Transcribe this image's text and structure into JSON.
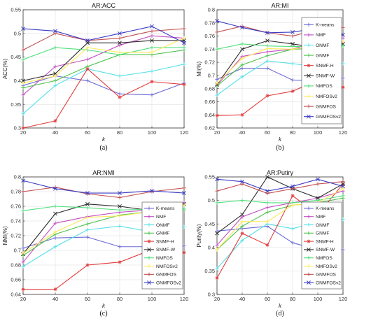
{
  "legend_labels": [
    "K-means",
    "NMF",
    "ONMF",
    "GNMF",
    "SNMF-H",
    "SNMF-W",
    "NMFOS",
    "NMFOSv2",
    "GNMFOS",
    "GNMFOSv2"
  ],
  "series_colors": [
    "#6b6bd6",
    "#c44fc4",
    "#53e0e8",
    "#4fc24f",
    "#e23c3c",
    "#2b2b2b",
    "#4fe07a",
    "#ffe95a",
    "#c25050",
    "#3b3bc4"
  ],
  "series_markers": [
    "plus",
    "plus",
    "plus",
    "plus",
    "star",
    "x",
    "plus",
    "plus",
    "plus",
    "x"
  ],
  "chart_data": [
    {
      "type": "line",
      "title": "AR:ACC",
      "xlabel": "k",
      "ylabel": "ACC(%)",
      "panel_label": "(a)",
      "x": [
        20,
        40,
        60,
        80,
        100,
        120
      ],
      "xticks": [
        "20",
        "40",
        "60",
        "80",
        "100",
        "120"
      ],
      "ylim": [
        0.3,
        0.55
      ],
      "yticks": [
        "0.3",
        "0.35",
        "0.4",
        "0.45",
        "0.5",
        "0.55"
      ],
      "grid": true,
      "legend": "none",
      "series": [
        {
          "name": "K-means",
          "values": [
            0.39,
            0.41,
            0.4,
            0.372,
            0.37,
            0.395
          ]
        },
        {
          "name": "NMF",
          "values": [
            0.37,
            0.43,
            0.445,
            0.475,
            0.495,
            0.49
          ]
        },
        {
          "name": "ONMF",
          "values": [
            0.33,
            0.39,
            0.425,
            0.41,
            0.42,
            0.435
          ]
        },
        {
          "name": "GNMF",
          "values": [
            0.385,
            0.4,
            0.43,
            0.455,
            0.455,
            0.465
          ]
        },
        {
          "name": "SNMF-H",
          "values": [
            0.3,
            0.315,
            0.425,
            0.365,
            0.398,
            0.392
          ]
        },
        {
          "name": "SNMF-W",
          "values": [
            0.4,
            0.415,
            0.48,
            0.48,
            0.485,
            0.485
          ]
        },
        {
          "name": "NMFOS",
          "values": [
            0.445,
            0.47,
            0.465,
            0.455,
            0.47,
            0.47
          ]
        },
        {
          "name": "NMFOSv2",
          "values": [
            0.395,
            0.41,
            0.47,
            0.46,
            0.46,
            0.49
          ]
        },
        {
          "name": "GNMFOS",
          "values": [
            0.465,
            0.5,
            0.485,
            0.49,
            0.505,
            0.51
          ]
        },
        {
          "name": "GNMFOSv2",
          "values": [
            0.51,
            0.505,
            0.485,
            0.5,
            0.515,
            0.48
          ]
        }
      ]
    },
    {
      "type": "line",
      "title": "AR:MI",
      "xlabel": "k",
      "ylabel": "MI(%)",
      "panel_label": "(b)",
      "x": [
        20,
        40,
        60,
        80,
        100,
        120
      ],
      "xticks": [
        "20",
        "40",
        "60",
        "80",
        "100",
        "120"
      ],
      "ylim": [
        0.62,
        0.8
      ],
      "yticks": [
        "0.62",
        "0.64",
        "0.66",
        "0.68",
        "0.7",
        "0.72",
        "0.74",
        "0.76",
        "0.78",
        "0.8"
      ],
      "grid": true,
      "legend": "right",
      "series": [
        {
          "name": "K-means",
          "values": [
            0.694,
            0.711,
            0.711,
            0.693,
            0.692,
            0.696
          ]
        },
        {
          "name": "NMF",
          "values": [
            0.685,
            0.729,
            0.736,
            0.74,
            0.752,
            0.757
          ]
        },
        {
          "name": "ONMF",
          "values": [
            0.67,
            0.698,
            0.722,
            0.718,
            0.713,
            0.718
          ]
        },
        {
          "name": "GNMF",
          "values": [
            0.684,
            0.716,
            0.73,
            0.74,
            0.741,
            0.745
          ]
        },
        {
          "name": "SNMF-H",
          "values": [
            0.639,
            0.64,
            0.669,
            0.676,
            0.693,
            0.682
          ]
        },
        {
          "name": "SNMF-W",
          "values": [
            0.686,
            0.74,
            0.753,
            0.748,
            0.742,
            0.748
          ]
        },
        {
          "name": "NMFOS",
          "values": [
            0.74,
            0.748,
            0.745,
            0.744,
            0.744,
            0.745
          ]
        },
        {
          "name": "NMFOSv2",
          "values": [
            0.688,
            0.726,
            0.741,
            0.74,
            0.746,
            0.752
          ]
        },
        {
          "name": "GNMFOS",
          "values": [
            0.766,
            0.775,
            0.765,
            0.76,
            0.77,
            0.773
          ]
        },
        {
          "name": "GNMFOSv2",
          "values": [
            0.783,
            0.773,
            0.765,
            0.766,
            0.772,
            0.762
          ]
        }
      ]
    },
    {
      "type": "line",
      "title": "AR:NMI",
      "xlabel": "k",
      "ylabel": "NMI(%)",
      "panel_label": "(c)",
      "x": [
        20,
        40,
        60,
        80,
        100,
        120
      ],
      "xticks": [
        "20",
        "40",
        "60",
        "80",
        "100",
        "120"
      ],
      "ylim": [
        0.64,
        0.8
      ],
      "yticks": [
        "0.64",
        "0.66",
        "0.68",
        "0.7",
        "0.72",
        "0.74",
        "0.76",
        "0.78",
        "0.8"
      ],
      "grid": true,
      "legend": "right",
      "series": [
        {
          "name": "K-means",
          "values": [
            0.703,
            0.717,
            0.718,
            0.705,
            0.705,
            0.706
          ]
        },
        {
          "name": "NMF",
          "values": [
            0.684,
            0.737,
            0.746,
            0.752,
            0.755,
            0.765
          ]
        },
        {
          "name": "ONMF",
          "values": [
            0.678,
            0.705,
            0.728,
            0.733,
            0.725,
            0.732
          ]
        },
        {
          "name": "GNMF",
          "values": [
            0.693,
            0.722,
            0.736,
            0.748,
            0.753,
            0.755
          ]
        },
        {
          "name": "SNMF-H",
          "values": [
            0.647,
            0.647,
            0.68,
            0.684,
            0.701,
            0.697
          ]
        },
        {
          "name": "SNMF-W",
          "values": [
            0.695,
            0.75,
            0.763,
            0.76,
            0.754,
            0.763
          ]
        },
        {
          "name": "NMFOS",
          "values": [
            0.754,
            0.76,
            0.758,
            0.755,
            0.756,
            0.757
          ]
        },
        {
          "name": "NMFOSv2",
          "values": [
            0.696,
            0.725,
            0.745,
            0.747,
            0.753,
            0.762
          ]
        },
        {
          "name": "GNMFOS",
          "values": [
            0.78,
            0.786,
            0.777,
            0.772,
            0.78,
            0.785
          ]
        },
        {
          "name": "GNMFOSv2",
          "values": [
            0.795,
            0.784,
            0.778,
            0.778,
            0.781,
            0.778
          ]
        }
      ]
    },
    {
      "type": "line",
      "title": "AR:Putiry",
      "xlabel": "k",
      "ylabel": "Purity(%)",
      "panel_label": "(d)",
      "x": [
        20,
        40,
        60,
        80,
        100,
        120
      ],
      "xticks": [
        "20",
        "40",
        "60",
        "80",
        "100",
        "120"
      ],
      "ylim": [
        0.3,
        0.55
      ],
      "yticks": [
        "0.3",
        "0.35",
        "0.4",
        "0.45",
        "0.5",
        "0.55"
      ],
      "grid": true,
      "legend": "right",
      "series": [
        {
          "name": "K-means",
          "values": [
            0.435,
            0.44,
            0.445,
            0.41,
            0.395,
            0.395
          ]
        },
        {
          "name": "NMF",
          "values": [
            0.405,
            0.465,
            0.485,
            0.495,
            0.505,
            0.52
          ]
        },
        {
          "name": "ONMF",
          "values": [
            0.355,
            0.415,
            0.45,
            0.44,
            0.455,
            0.46
          ]
        },
        {
          "name": "GNMF",
          "values": [
            0.395,
            0.445,
            0.475,
            0.49,
            0.495,
            0.505
          ]
        },
        {
          "name": "SNMF-H",
          "values": [
            0.335,
            0.43,
            0.405,
            0.51,
            0.47,
            0.535
          ]
        },
        {
          "name": "SNMF-W",
          "values": [
            0.43,
            0.47,
            0.55,
            0.525,
            0.505,
            0.535
          ]
        },
        {
          "name": "NMFOS",
          "values": [
            0.495,
            0.5,
            0.495,
            0.495,
            0.5,
            0.51
          ]
        },
        {
          "name": "NMFOSv2",
          "values": [
            0.395,
            0.455,
            0.455,
            0.49,
            0.495,
            0.525
          ]
        },
        {
          "name": "GNMFOS",
          "values": [
            0.52,
            0.535,
            0.515,
            0.525,
            0.535,
            0.54
          ]
        },
        {
          "name": "GNMFOSv2",
          "values": [
            0.545,
            0.54,
            0.52,
            0.53,
            0.545,
            0.53
          ]
        }
      ]
    }
  ]
}
